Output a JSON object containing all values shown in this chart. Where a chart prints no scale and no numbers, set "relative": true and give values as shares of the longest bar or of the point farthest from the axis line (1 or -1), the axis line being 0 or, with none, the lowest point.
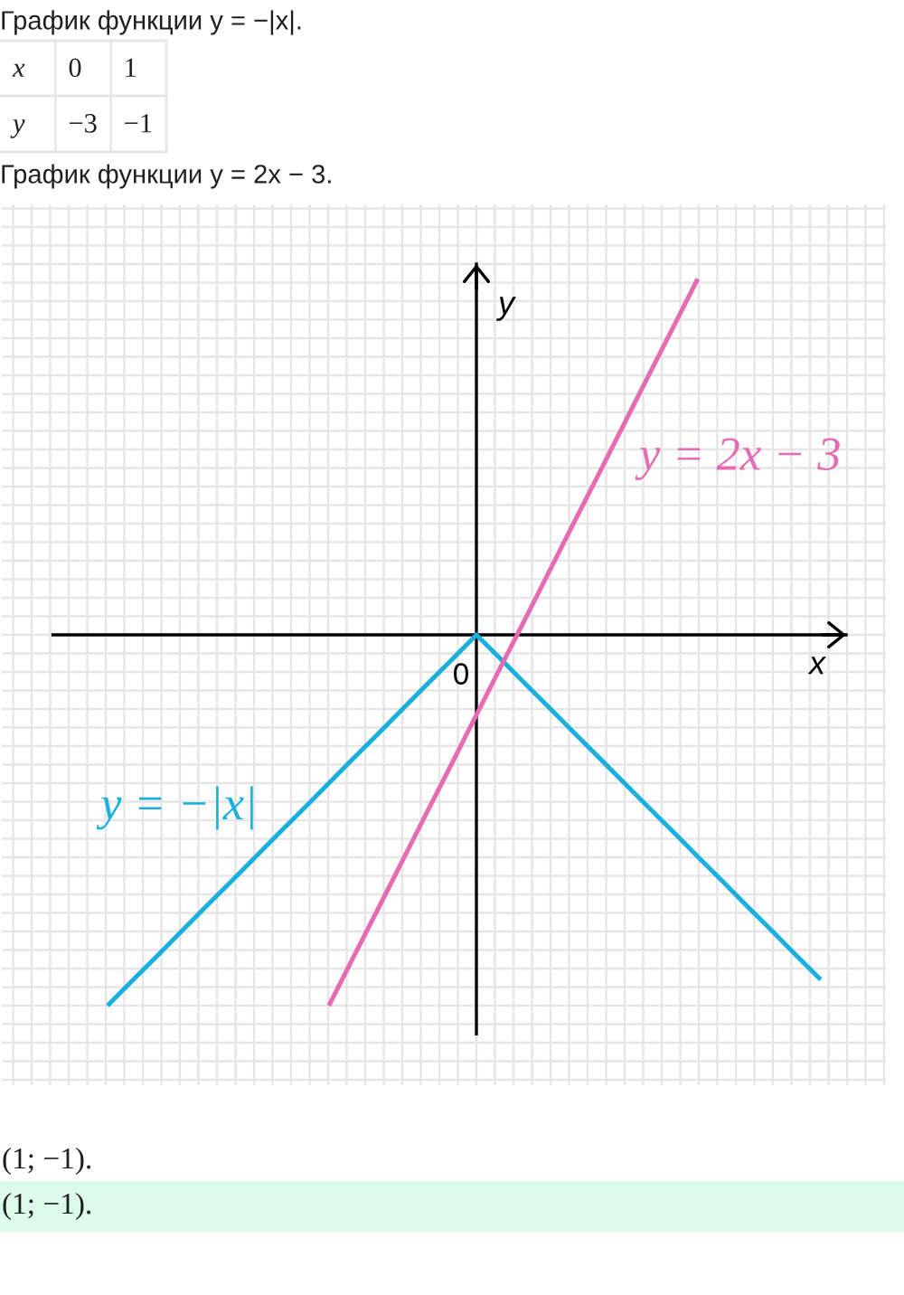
{
  "chart_data": {
    "type": "line",
    "title": "График функции y = −|x|.",
    "xlabel": "x",
    "ylabel": "y",
    "relative": true,
    "grid": true,
    "categories": [
      null,
      null,
      null,
      null,
      null,
      null,
      null,
      null,
      null,
      null,
      null,
      null,
      null,
      null,
      null,
      null,
      null,
      null,
      null,
      null,
      null,
      null,
      null,
      null,
      null,
      null,
      null,
      null,
      null,
      null,
      null
    ],
    "series": [
      {
        "name": "y = −|x|",
        "color": "#1aafdc",
        "values": [
          -1,
          -0.933,
          -0.867,
          -0.8,
          -0.733,
          -0.667,
          -0.6,
          -0.533,
          -0.467,
          -0.4,
          -0.333,
          -0.267,
          -0.2,
          -0.133,
          -0.067,
          0,
          -0.066,
          -0.133,
          -0.199,
          -0.266,
          -0.332,
          -0.399,
          -0.465,
          -0.531,
          -0.598,
          -0.664,
          -0.731,
          -0.797,
          -0.864,
          -0.93,
          null
        ]
      },
      {
        "name": "y = 2x − 3",
        "color": "#e56bb4",
        "values": [
          null,
          null,
          null,
          null,
          null,
          null,
          null,
          null,
          null,
          -1,
          -0.869,
          -0.739,
          -0.608,
          -0.477,
          -0.347,
          -0.216,
          -0.085,
          0.045,
          0.176,
          0.307,
          0.437,
          0.568,
          0.699,
          0.829,
          0.96,
          null,
          null,
          null,
          null,
          null,
          null
        ]
      }
    ],
    "annotations": [
      "x",
      "0",
      "1",
      "y",
      "−3",
      "−1",
      "График функции y = 2x − 3.",
      {
        "text": "0",
        "y": 0
      },
      "(1; −1).",
      "(1; −1)."
    ]
  }
}
